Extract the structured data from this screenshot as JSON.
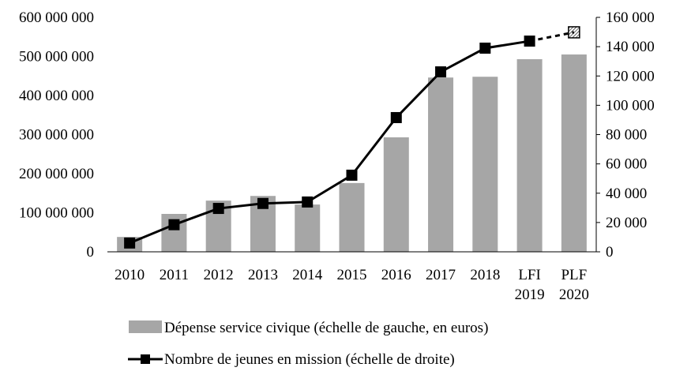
{
  "chart_data": {
    "type": "bar",
    "title": "",
    "categories": [
      "2010",
      "2011",
      "2012",
      "2013",
      "2014",
      "2015",
      "2016",
      "2017",
      "2018",
      "LFI\n2019",
      "PLF\n2020"
    ],
    "left_axis": {
      "min": 0,
      "max": 600000000,
      "step": 100000000,
      "tick_labels": [
        "0",
        "100 000 000",
        "200 000 000",
        "300 000 000",
        "400 000 000",
        "500 000 000",
        "600 000 000"
      ]
    },
    "right_axis": {
      "min": 0,
      "max": 160000,
      "step": 20000,
      "tick_labels": [
        "0",
        "20 000",
        "40 000",
        "60 000",
        "80 000",
        "100 000",
        "120 000",
        "140 000",
        "160 000"
      ]
    },
    "series": [
      {
        "name": "Dépense service civique (échelle de gauche, en euros)",
        "type": "bar",
        "axis": "left",
        "color": "#a6a6a6",
        "values": [
          38000000,
          97000000,
          131000000,
          143000000,
          121000000,
          176000000,
          293000000,
          446000000,
          448000000,
          493000000,
          505000000
        ]
      },
      {
        "name": "Nombre de jeunes en mission (échelle de droite)",
        "type": "line",
        "axis": "right",
        "color": "#000000",
        "values": [
          6000,
          18500,
          29600,
          33000,
          34000,
          52300,
          91600,
          122800,
          139000,
          143800,
          149800
        ],
        "projected_last_point": true
      }
    ],
    "legend_position": "bottom",
    "grid": false
  }
}
